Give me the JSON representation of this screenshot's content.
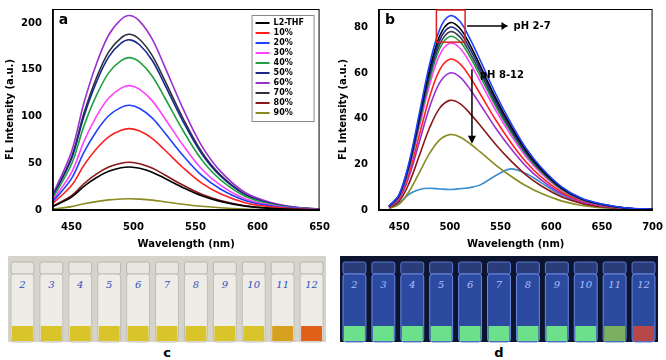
{
  "chart_data": [
    {
      "type": "line",
      "panel_label": "a",
      "x_label": "Wavelength (nm)",
      "y_label": "FL Intensity (a.u.)",
      "x": [
        435,
        450,
        460,
        470,
        480,
        490,
        497,
        505,
        515,
        525,
        540,
        555,
        570,
        590,
        610,
        630,
        650
      ],
      "xlim": [
        435,
        650
      ],
      "xticks": [
        450,
        500,
        550,
        600,
        650
      ],
      "ylim": [
        0,
        215
      ],
      "yticks": [
        0,
        50,
        100,
        150,
        200
      ],
      "grid": false,
      "legend": "upper right",
      "series": [
        {
          "name": "L2-THF",
          "color": "#000000",
          "values": [
            3.7,
            13.8,
            25.3,
            34.5,
            41.4,
            45.1,
            46,
            44.6,
            40.5,
            34,
            23.9,
            15.2,
            9.2,
            4.1,
            1.8,
            0.7,
            0.2
          ]
        },
        {
          "name": "10%",
          "color": "#ff2020",
          "values": [
            7,
            26.1,
            47.9,
            65.3,
            78.3,
            85.3,
            87,
            84.4,
            76.6,
            64.4,
            45.2,
            28.7,
            17.4,
            7.8,
            3.5,
            1.3,
            0.4
          ]
        },
        {
          "name": "20%",
          "color": "#2040ff",
          "values": [
            9,
            33.6,
            61.6,
            84,
            100.8,
            109.8,
            112,
            108.6,
            98.6,
            82.9,
            58.2,
            37,
            22.4,
            10.1,
            4.5,
            1.7,
            0.6
          ]
        },
        {
          "name": "30%",
          "color": "#ff40ff",
          "values": [
            10.6,
            39.9,
            73.2,
            99.8,
            119.7,
            130.3,
            133,
            129,
            117,
            98.4,
            69.2,
            43.9,
            26.6,
            12,
            5.3,
            2,
            0.7
          ]
        },
        {
          "name": "40%",
          "color": "#20a040",
          "values": [
            13,
            48.9,
            89.7,
            122.3,
            146.7,
            159.7,
            163,
            158.1,
            143.4,
            120.6,
            84.8,
            53.8,
            32.6,
            14.7,
            6.5,
            2.4,
            0.8
          ]
        },
        {
          "name": "50%",
          "color": "#1a2a8a",
          "values": [
            14.6,
            54.6,
            100.1,
            136.5,
            163.8,
            178.4,
            182,
            176.5,
            160.2,
            134.7,
            94.6,
            60.1,
            36.4,
            16.4,
            7.3,
            2.7,
            0.9
          ]
        },
        {
          "name": "60%",
          "color": "#9a30d0",
          "values": [
            16.6,
            62.4,
            114.4,
            156,
            187.2,
            203.8,
            208,
            201.8,
            183,
            153.9,
            108.2,
            68.6,
            41.6,
            18.7,
            8.3,
            3.1,
            1
          ]
        },
        {
          "name": "70%",
          "color": "#303040",
          "values": [
            15,
            56.4,
            103.4,
            141,
            169.2,
            184.2,
            188,
            182.4,
            165.4,
            139.1,
            97.8,
            62,
            37.6,
            16.9,
            7.5,
            2.8,
            0.9
          ]
        },
        {
          "name": "80%",
          "color": "#8a1818",
          "values": [
            4.1,
            15.3,
            28.1,
            38.3,
            45.9,
            50,
            51,
            49.5,
            44.9,
            37.7,
            26.5,
            16.8,
            10.2,
            4.6,
            2,
            0.8,
            0.3
          ]
        },
        {
          "name": "90%",
          "color": "#8a8a20",
          "values": [
            1,
            3.6,
            6.6,
            9,
            10.8,
            11.8,
            12,
            11.6,
            10.6,
            8.9,
            6.2,
            4,
            2.4,
            1.1,
            0.5,
            0.2,
            0.1
          ]
        }
      ]
    },
    {
      "type": "line",
      "panel_label": "b",
      "x_label": "Wavelength (nm)",
      "y_label": "FL Intensity (a.u.)",
      "x": [
        440,
        450,
        460,
        470,
        480,
        490,
        500,
        510,
        520,
        530,
        545,
        560,
        575,
        590,
        610,
        630,
        650,
        675,
        700
      ],
      "xlim": [
        430,
        700
      ],
      "xticks": [
        450,
        500,
        550,
        600,
        650,
        700
      ],
      "ylim": [
        0,
        88
      ],
      "yticks": [
        0,
        20,
        40,
        60,
        80
      ],
      "grid": false,
      "annotations": [
        "pH 2-7",
        "pH 8-12"
      ],
      "series": [
        {
          "color": "#2040ff",
          "values": [
            1.7,
            6.8,
            21.3,
            42.5,
            63.8,
            79.1,
            85,
            82.5,
            74.8,
            65.5,
            51,
            38.3,
            27.2,
            18.7,
            10.2,
            5.1,
            2.6,
            0.9,
            0.4
          ]
        },
        {
          "color": "#000000",
          "values": [
            1.6,
            6.6,
            20.5,
            41,
            61.5,
            76.3,
            82,
            79.5,
            72.2,
            63.1,
            49.2,
            36.9,
            26.2,
            18,
            9.8,
            4.9,
            2.5,
            0.8,
            0.4
          ]
        },
        {
          "color": "#1a2a8a",
          "values": [
            1.6,
            6.4,
            20,
            40,
            60,
            74.4,
            80,
            77.6,
            70.4,
            61.6,
            48,
            36,
            25.6,
            17.6,
            9.6,
            4.8,
            2.4,
            0.8,
            0.4
          ]
        },
        {
          "color": "#404050",
          "values": [
            1.6,
            6.2,
            19.5,
            39,
            58.5,
            72.5,
            78,
            75.7,
            68.6,
            60.1,
            46.8,
            35.1,
            25,
            17.2,
            9.4,
            4.7,
            2.3,
            0.8,
            0.4
          ]
        },
        {
          "color": "#20a040",
          "values": [
            1.5,
            6.1,
            19,
            38,
            57,
            70.7,
            76,
            73.7,
            66.9,
            58.5,
            45.6,
            34.2,
            24.3,
            16.7,
            9.1,
            4.6,
            2.3,
            0.8,
            0.4
          ]
        },
        {
          "color": "#ff40ff",
          "values": [
            1.5,
            5.8,
            18.3,
            36.5,
            54.8,
            67.9,
            73,
            70.8,
            64.2,
            56.2,
            43.8,
            32.9,
            23.4,
            16.1,
            8.8,
            4.4,
            2.2,
            0.7,
            0.4
          ]
        },
        {
          "color": "#ff2020",
          "values": [
            1.3,
            5.3,
            16.5,
            33,
            49.5,
            61.4,
            66,
            64,
            58.1,
            50.8,
            39.6,
            29.7,
            21.1,
            14.5,
            7.9,
            4,
            2,
            0.7,
            0.3
          ]
        },
        {
          "color": "#9a30d0",
          "values": [
            1.2,
            4.8,
            15,
            30,
            45,
            55.8,
            60,
            58.2,
            52.8,
            46.2,
            36,
            27,
            19.2,
            13.2,
            7.2,
            3.6,
            1.8,
            0.6,
            0.3
          ]
        },
        {
          "color": "#8a1818",
          "values": [
            1,
            3.8,
            12,
            24,
            36,
            44.6,
            48,
            46.6,
            42.2,
            37,
            28.8,
            21.6,
            15.4,
            10.6,
            5.8,
            2.9,
            1.4,
            0.5,
            0.2
          ]
        },
        {
          "color": "#8a8a20",
          "values": [
            0.7,
            2.6,
            8.3,
            16.5,
            24.8,
            30.7,
            33,
            32,
            29,
            25.4,
            19.8,
            14.9,
            10.6,
            7.3,
            4,
            2,
            1,
            0.3,
            0.2
          ]
        },
        {
          "color": "#3a8fd0",
          "values": [
            1,
            3,
            7,
            9,
            9.5,
            9.2,
            9,
            9.3,
            9.8,
            11,
            15,
            18,
            16,
            12,
            6.5,
            3,
            1.2,
            0.4,
            0.1
          ]
        }
      ]
    }
  ],
  "photos": [
    {
      "panel_label": "c",
      "vial_labels": [
        "2",
        "3",
        "4",
        "5",
        "6",
        "7",
        "8",
        "9",
        "10",
        "11",
        "12"
      ]
    },
    {
      "panel_label": "d",
      "vial_labels": [
        "2",
        "3",
        "4",
        "5",
        "6",
        "7",
        "8",
        "9",
        "10",
        "11",
        "12"
      ]
    }
  ]
}
